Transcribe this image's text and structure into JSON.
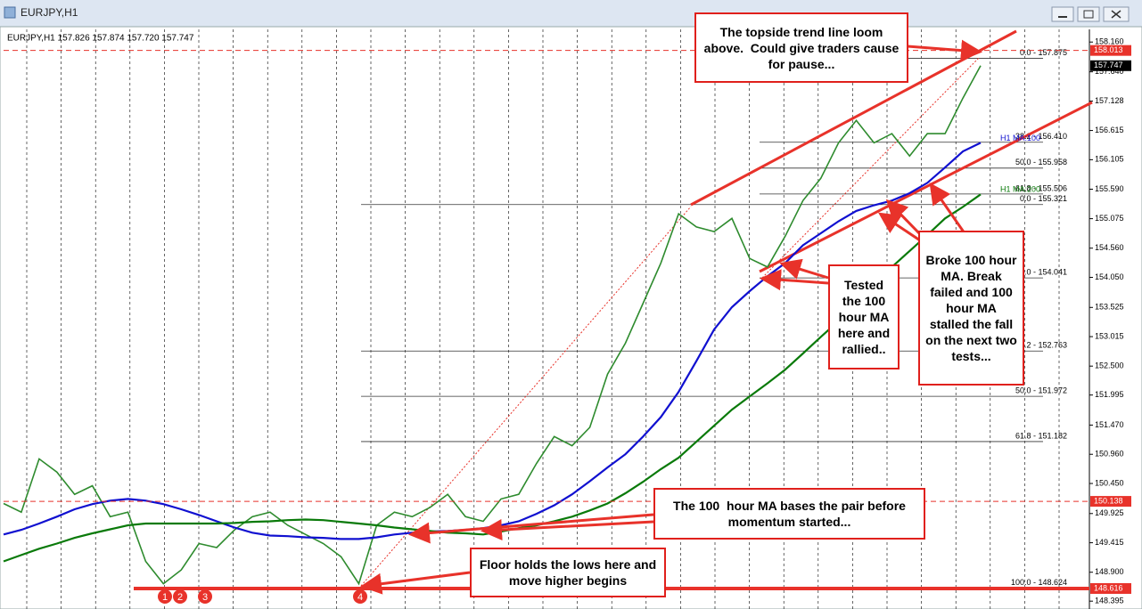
{
  "window": {
    "title": "EURJPY,H1"
  },
  "chart_data": {
    "type": "line",
    "info_line": "EURJPY,H1  157.826 157.874 157.720 157.747",
    "categories": [
      null,
      null,
      null,
      null,
      null,
      null,
      null,
      null,
      null,
      null,
      null,
      null,
      null,
      null,
      null,
      null,
      null,
      null,
      null,
      null,
      null,
      null,
      null,
      null,
      null,
      null,
      null,
      null,
      null,
      null,
      null,
      null,
      null,
      null,
      null,
      null,
      null,
      null,
      null,
      null,
      null,
      null,
      null,
      null,
      null,
      null,
      null,
      null,
      null,
      null,
      null,
      null,
      null,
      null,
      null,
      null
    ],
    "series": [
      {
        "color": "#2e8b2e",
        "values": [
          150.1,
          149.95,
          150.88,
          150.65,
          150.26,
          150.41,
          149.87,
          149.95,
          149.09,
          148.7,
          148.94,
          149.4,
          149.33,
          149.64,
          149.87,
          149.95,
          149.72,
          149.56,
          149.4,
          149.17,
          148.7,
          149.72,
          149.95,
          149.87,
          150.03,
          150.26,
          149.87,
          149.79,
          150.18,
          150.26,
          150.8,
          151.27,
          151.11,
          151.43,
          152.36,
          152.9,
          153.6,
          154.3,
          155.16,
          154.93,
          154.85,
          155.08,
          154.38,
          154.23,
          154.77,
          155.39,
          155.78,
          156.4,
          156.79,
          156.4,
          156.56,
          156.17,
          156.56,
          156.56,
          157.18,
          157.747
        ]
      },
      {
        "name": "H1 MA:100",
        "color": "#1010d0",
        "values": [
          149.56,
          149.64,
          149.75,
          149.87,
          150.0,
          150.09,
          150.15,
          150.18,
          150.15,
          150.09,
          150.0,
          149.9,
          149.79,
          149.68,
          149.59,
          149.54,
          149.53,
          149.51,
          149.5,
          149.48,
          149.48,
          149.51,
          149.56,
          149.59,
          149.61,
          149.62,
          149.64,
          149.67,
          149.72,
          149.79,
          149.92,
          150.07,
          150.26,
          150.49,
          150.73,
          150.96,
          151.27,
          151.61,
          152.05,
          152.59,
          153.14,
          153.53,
          153.81,
          154.07,
          154.3,
          154.61,
          154.82,
          155.03,
          155.21,
          155.31,
          155.39,
          155.52,
          155.7,
          155.97,
          156.25,
          156.4
        ]
      },
      {
        "name": "H1 MA:200",
        "color": "#0a7a0a",
        "values": [
          149.09,
          149.2,
          149.31,
          149.4,
          149.5,
          149.58,
          149.65,
          149.72,
          149.75,
          149.75,
          149.75,
          149.75,
          149.75,
          149.76,
          149.78,
          149.79,
          149.81,
          149.82,
          149.81,
          149.78,
          149.75,
          149.72,
          149.68,
          149.65,
          149.62,
          149.59,
          149.58,
          149.56,
          149.61,
          149.67,
          149.72,
          149.79,
          149.87,
          149.98,
          150.1,
          150.28,
          150.48,
          150.7,
          150.9,
          151.18,
          151.46,
          151.74,
          151.97,
          152.2,
          152.44,
          152.72,
          153.01,
          153.29,
          153.6,
          153.91,
          154.23,
          154.51,
          154.79,
          155.08,
          155.28,
          155.5
        ]
      }
    ],
    "ylim": [
      148.32,
      158.35
    ],
    "yticks": [
      {
        "value": 148.395,
        "label": "148.395"
      },
      {
        "value": 148.9,
        "label": "148.900"
      },
      {
        "value": 149.415,
        "label": "149.415"
      },
      {
        "value": 149.925,
        "label": "149.925"
      },
      {
        "value": 150.45,
        "label": "150.450"
      },
      {
        "value": 150.96,
        "label": "150.960"
      },
      {
        "value": 151.47,
        "label": "151.470"
      },
      {
        "value": 151.995,
        "label": "151.995"
      },
      {
        "value": 152.5,
        "label": "152.500"
      },
      {
        "value": 153.015,
        "label": "153.015"
      },
      {
        "value": 153.525,
        "label": "153.525"
      },
      {
        "value": 154.05,
        "label": "154.050"
      },
      {
        "value": 154.56,
        "label": "154.560"
      },
      {
        "value": 155.075,
        "label": "155.075"
      },
      {
        "value": 155.59,
        "label": "155.590"
      },
      {
        "value": 156.105,
        "label": "156.105"
      },
      {
        "value": 156.615,
        "label": "156.615"
      },
      {
        "value": 157.128,
        "label": "157.128"
      },
      {
        "value": 157.64,
        "label": "157.640"
      },
      {
        "value": 158.16,
        "label": "158.160"
      }
    ],
    "price_labels": [
      {
        "value": 158.013,
        "color": "#e8322a",
        "line": "dashed"
      },
      {
        "value": 157.747,
        "color": "#000000",
        "line": "none"
      },
      {
        "value": 150.138,
        "color": "#e8322a",
        "line": "dashed"
      },
      {
        "value": 148.616,
        "color": "#e8322a",
        "line": "solid"
      }
    ],
    "fib_groups": [
      [
        {
          "value": 157.875,
          "label": "0.0 - 157.875"
        },
        {
          "value": 156.41,
          "label": "38.2 - 156.410"
        },
        {
          "value": 155.958,
          "label": "50.0 - 155.958"
        },
        {
          "value": 155.506,
          "label": "61.8 - 155.506"
        },
        {
          "value": 154.041,
          "label": "100.0 - 154.041"
        }
      ],
      [
        {
          "value": 155.321,
          "label": "0.0 - 155.321"
        },
        {
          "value": 152.763,
          "label": "38.2 - 152.763"
        },
        {
          "value": 151.972,
          "label": "50.0 - 151.972"
        },
        {
          "value": 151.182,
          "label": "61.8 - 151.182"
        },
        {
          "value": 148.624,
          "label": "100.0 - 148.624"
        }
      ]
    ],
    "annotations": [
      "The topside trend line loom above.  Could give traders cause for pause...",
      "Tested the 100 hour MA here and rallied..",
      "Broke 100 hour MA. Break failed and 100 hour MA stalled the fall on the next two tests...",
      "The 100  hour MA bases the pair before momentum started...",
      "Floor holds the lows here and move higher begins"
    ],
    "markers": [
      "1",
      "2",
      "3",
      "4"
    ]
  }
}
